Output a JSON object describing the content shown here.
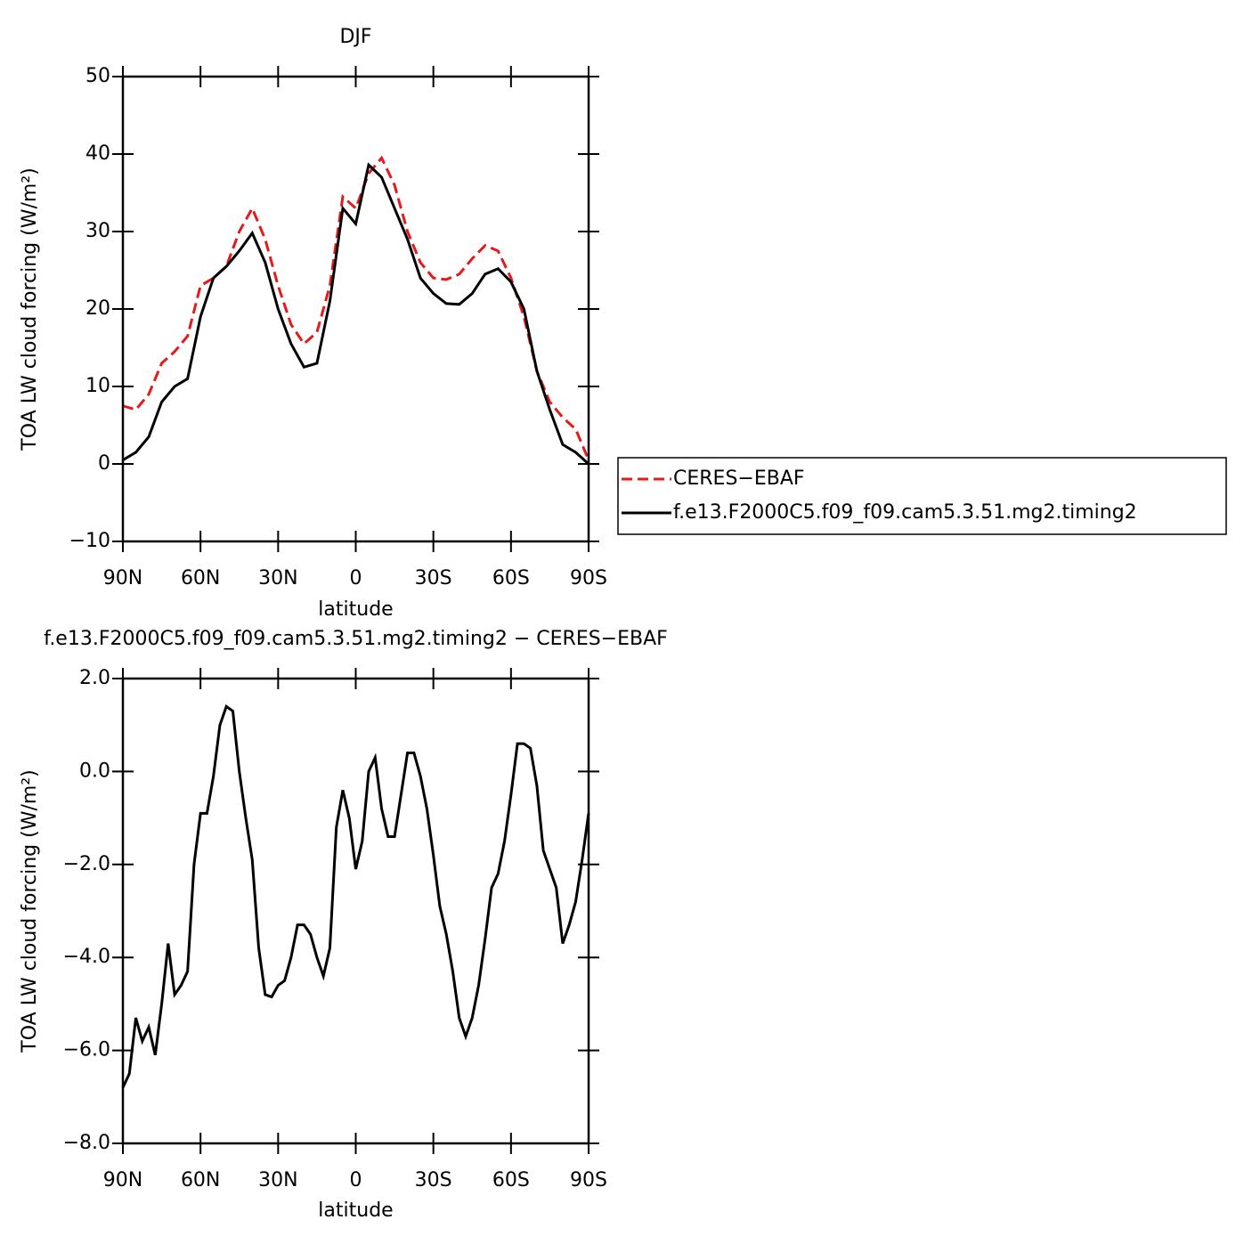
{
  "chart_data": [
    {
      "type": "line",
      "title": "DJF",
      "xlabel": "latitude",
      "ylabel": "TOA LW cloud forcing (W/m²)",
      "x": [
        90,
        85,
        80,
        75,
        70,
        65,
        60,
        55,
        50,
        45,
        40,
        35,
        30,
        25,
        20,
        15,
        10,
        5,
        0,
        -5,
        -10,
        -15,
        -20,
        -25,
        -30,
        -35,
        -40,
        -45,
        -50,
        -55,
        -60,
        -65,
        -70,
        -75,
        -80,
        -85,
        -90
      ],
      "xlim": [
        90,
        -90
      ],
      "xticks": [
        {
          "value": 90,
          "label": "90N"
        },
        {
          "value": 60,
          "label": "60N"
        },
        {
          "value": 30,
          "label": "30N"
        },
        0,
        {
          "value": -30,
          "label": "30S"
        },
        {
          "value": -60,
          "label": "60S"
        },
        {
          "value": -90,
          "label": "90S"
        }
      ],
      "ylim": [
        -10,
        50
      ],
      "yticks": [
        {
          "value": -10,
          "label": "−10"
        },
        0,
        10,
        20,
        30,
        40,
        50
      ],
      "legend": "right",
      "series": [
        {
          "name": "CERES−EBAF",
          "color": "#e41a1c",
          "style": "dashed",
          "values": [
            7.5,
            7,
            9,
            13,
            14.5,
            16.5,
            23,
            24,
            25.5,
            30,
            33,
            29,
            23,
            18,
            15.5,
            17,
            23,
            34.5,
            33,
            37.5,
            39.5,
            36,
            30,
            26,
            24,
            23.8,
            24.5,
            26.5,
            28.2,
            27.5,
            24,
            19,
            12,
            8,
            6,
            4.5,
            0.5
          ]
        },
        {
          "name": "f.e13.F2000C5.f09_f09.cam5.3.51.mg2.timing2",
          "color": "#000000",
          "style": "solid",
          "values": [
            0.5,
            1.5,
            3.5,
            8,
            10,
            11,
            19,
            24,
            25.5,
            27.5,
            29.8,
            26,
            20,
            15.5,
            12.5,
            13,
            21,
            33,
            31,
            38.6,
            37,
            33,
            29,
            24,
            22,
            20.7,
            20.6,
            22,
            24.5,
            25.2,
            23.5,
            20,
            12,
            7,
            2.5,
            1.5,
            0
          ]
        }
      ]
    },
    {
      "type": "line",
      "title": "f.e13.F2000C5.f09_f09.cam5.3.51.mg2.timing2 − CERES−EBAF",
      "xlabel": "latitude",
      "ylabel": "TOA LW cloud forcing (W/m²)",
      "x": [
        90,
        87.5,
        85,
        82.5,
        80,
        77.5,
        75,
        72.5,
        70,
        67.5,
        65,
        62.5,
        60,
        57.5,
        55,
        52.5,
        50,
        47.5,
        45,
        42.5,
        40,
        37.5,
        35,
        32.5,
        30,
        27.5,
        25,
        22.5,
        20,
        17.5,
        15,
        12.5,
        10,
        7.5,
        5,
        2.5,
        0,
        -2.5,
        -5,
        -7.5,
        -10,
        -12.5,
        -15,
        -17.5,
        -20,
        -22.5,
        -25,
        -27.5,
        -30,
        -32.5,
        -35,
        -37.5,
        -40,
        -42.5,
        -45,
        -47.5,
        -50,
        -52.5,
        -55,
        -57.5,
        -60,
        -62.5,
        -65,
        -67.5,
        -70,
        -72.5,
        -75,
        -77.5,
        -80,
        -82.5,
        -85,
        -87.5,
        -90
      ],
      "xlim": [
        90,
        -90
      ],
      "xticks": [
        {
          "value": 90,
          "label": "90N"
        },
        {
          "value": 60,
          "label": "60N"
        },
        {
          "value": 30,
          "label": "30N"
        },
        0,
        {
          "value": -30,
          "label": "30S"
        },
        {
          "value": -60,
          "label": "60S"
        },
        {
          "value": -90,
          "label": "90S"
        }
      ],
      "ylim": [
        -8,
        2
      ],
      "yticks": [
        {
          "value": -8,
          "label": "−8.0"
        },
        {
          "value": -6,
          "label": "−6.0"
        },
        {
          "value": -4,
          "label": "−4.0"
        },
        {
          "value": -2,
          "label": "−2.0"
        },
        {
          "value": 0,
          "label": "0.0"
        },
        {
          "value": 2,
          "label": "2.0"
        }
      ],
      "series": [
        {
          "color": "#000000",
          "style": "solid",
          "values": [
            -6.8,
            -6.5,
            -5.3,
            -5.8,
            -5.5,
            -6.1,
            -5.0,
            -3.7,
            -4.8,
            -4.6,
            -4.3,
            -2.0,
            -0.9,
            -0.9,
            -0.1,
            1.0,
            1.4,
            1.3,
            0.0,
            -1.0,
            -1.9,
            -3.8,
            -4.8,
            -4.85,
            -4.6,
            -4.5,
            -4.0,
            -3.3,
            -3.3,
            -3.5,
            -4.0,
            -4.4,
            -3.8,
            -1.2,
            -0.4,
            -1.0,
            -2.1,
            -1.5,
            0.0,
            0.3,
            -0.8,
            -1.4,
            -1.4,
            -0.5,
            0.4,
            0.4,
            -0.1,
            -0.8,
            -1.8,
            -2.9,
            -3.5,
            -4.3,
            -5.3,
            -5.7,
            -5.3,
            -4.6,
            -3.6,
            -2.5,
            -2.2,
            -1.5,
            -0.5,
            0.6,
            0.6,
            0.5,
            -0.3,
            -1.7,
            -2.1,
            -2.5,
            -3.7,
            -3.3,
            -2.8,
            -1.9,
            -0.9
          ]
        }
      ]
    }
  ]
}
